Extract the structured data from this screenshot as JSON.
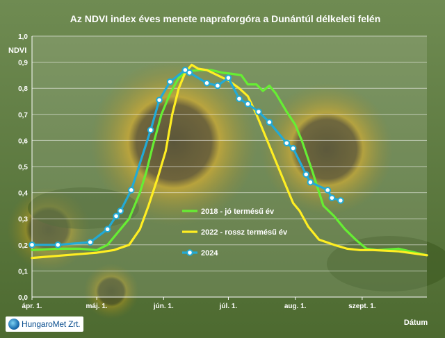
{
  "logo": {
    "text": "HungaroMet Zrt."
  },
  "chart_data": {
    "type": "line",
    "title": "Az NDVI index éves menete napraforgóra a Dunántúl délkeleti felén",
    "xlabel": "Dátum",
    "ylabel": "NDVI",
    "ylim": [
      0,
      1.0
    ],
    "yticks": [
      "0,0",
      "0,1",
      "0,2",
      "0,3",
      "0,4",
      "0,5",
      "0,6",
      "0,7",
      "0,8",
      "0,9",
      "1,0"
    ],
    "xticks": [
      {
        "label": "ápr. 1.",
        "day": 0
      },
      {
        "label": "máj. 1.",
        "day": 30
      },
      {
        "label": "jún. 1.",
        "day": 61
      },
      {
        "label": "júl. 1.",
        "day": 91
      },
      {
        "label": "aug. 1.",
        "day": 122
      },
      {
        "label": "szept. 1.",
        "day": 153
      }
    ],
    "xlim_days": [
      0,
      183
    ],
    "grid": true,
    "legend_position": "middle-right",
    "series": [
      {
        "name": "2018 - jó termésű év",
        "color": "#66ee33",
        "markers": false,
        "points": [
          [
            0,
            0.18
          ],
          [
            12,
            0.185
          ],
          [
            22,
            0.185
          ],
          [
            30,
            0.18
          ],
          [
            35,
            0.2
          ],
          [
            40,
            0.25
          ],
          [
            45,
            0.3
          ],
          [
            50,
            0.4
          ],
          [
            53,
            0.48
          ],
          [
            56,
            0.58
          ],
          [
            60,
            0.7
          ],
          [
            64,
            0.78
          ],
          [
            68,
            0.84
          ],
          [
            72,
            0.865
          ],
          [
            78,
            0.87
          ],
          [
            83,
            0.87
          ],
          [
            88,
            0.86
          ],
          [
            93,
            0.855
          ],
          [
            97,
            0.85
          ],
          [
            100,
            0.815
          ],
          [
            104,
            0.815
          ],
          [
            107,
            0.79
          ],
          [
            110,
            0.81
          ],
          [
            113,
            0.78
          ],
          [
            118,
            0.71
          ],
          [
            122,
            0.66
          ],
          [
            125,
            0.6
          ],
          [
            130,
            0.48
          ],
          [
            135,
            0.35
          ],
          [
            140,
            0.31
          ],
          [
            145,
            0.26
          ],
          [
            150,
            0.22
          ],
          [
            155,
            0.185
          ],
          [
            160,
            0.18
          ],
          [
            170,
            0.185
          ],
          [
            183,
            0.16
          ]
        ]
      },
      {
        "name": "2022 - rossz termésű év",
        "color": "#ffee22",
        "markers": false,
        "points": [
          [
            0,
            0.15
          ],
          [
            15,
            0.16
          ],
          [
            30,
            0.17
          ],
          [
            38,
            0.18
          ],
          [
            45,
            0.2
          ],
          [
            50,
            0.26
          ],
          [
            54,
            0.35
          ],
          [
            58,
            0.45
          ],
          [
            62,
            0.56
          ],
          [
            65,
            0.7
          ],
          [
            68,
            0.8
          ],
          [
            71,
            0.86
          ],
          [
            74,
            0.89
          ],
          [
            77,
            0.875
          ],
          [
            81,
            0.87
          ],
          [
            86,
            0.85
          ],
          [
            91,
            0.83
          ],
          [
            96,
            0.8
          ],
          [
            100,
            0.77
          ],
          [
            104,
            0.7
          ],
          [
            108,
            0.62
          ],
          [
            112,
            0.54
          ],
          [
            117,
            0.44
          ],
          [
            121,
            0.36
          ],
          [
            124,
            0.33
          ],
          [
            128,
            0.27
          ],
          [
            133,
            0.22
          ],
          [
            140,
            0.2
          ],
          [
            146,
            0.185
          ],
          [
            152,
            0.18
          ],
          [
            158,
            0.18
          ],
          [
            170,
            0.175
          ],
          [
            183,
            0.16
          ]
        ]
      },
      {
        "name": "2024",
        "color": "#22aad6",
        "markers": true,
        "points": [
          [
            0,
            0.2
          ],
          [
            12,
            0.2
          ],
          [
            27,
            0.21
          ],
          [
            35,
            0.26
          ],
          [
            39,
            0.31
          ],
          [
            41,
            0.33
          ],
          [
            46,
            0.41
          ],
          [
            55,
            0.64
          ],
          [
            59,
            0.755
          ],
          [
            64,
            0.825
          ],
          [
            71,
            0.87
          ],
          [
            73,
            0.86
          ],
          [
            81,
            0.82
          ],
          [
            86,
            0.81
          ],
          [
            91,
            0.84
          ],
          [
            96,
            0.76
          ],
          [
            100,
            0.74
          ],
          [
            105,
            0.71
          ],
          [
            110,
            0.67
          ],
          [
            118,
            0.59
          ],
          [
            121,
            0.57
          ],
          [
            127,
            0.47
          ],
          [
            129,
            0.44
          ],
          [
            137,
            0.41
          ],
          [
            139,
            0.38
          ],
          [
            143,
            0.37
          ]
        ]
      }
    ]
  }
}
